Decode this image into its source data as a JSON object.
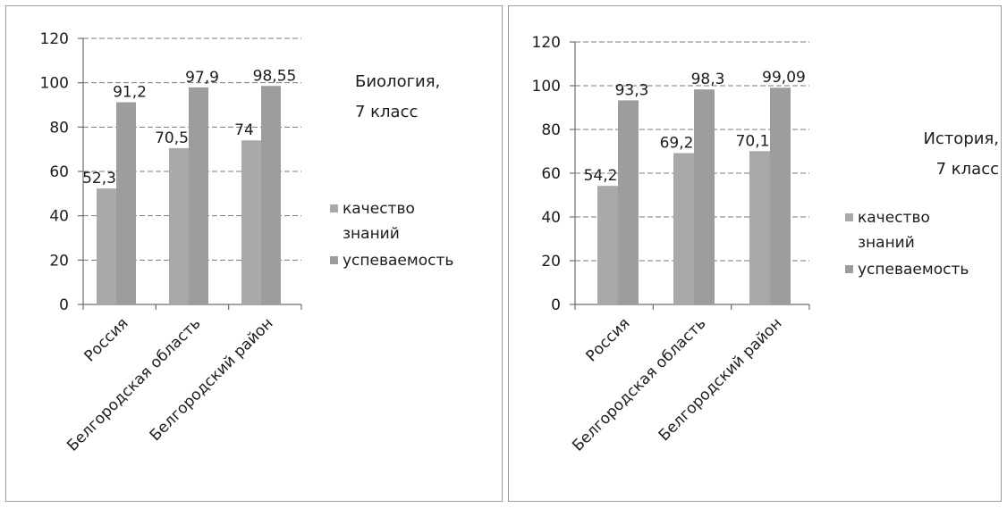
{
  "chart_data": [
    {
      "type": "bar",
      "title_lines": [
        "Биология,",
        "7 класс"
      ],
      "categories": [
        "Россия",
        "Белгородская область",
        "Белгородский район"
      ],
      "series": [
        {
          "name": "качество знаний",
          "legend_lines": [
            "качество",
            "знаний"
          ],
          "values": [
            52.3,
            70.5,
            74
          ],
          "labels": [
            "52,3",
            "70,5",
            "74"
          ]
        },
        {
          "name": "успеваемость",
          "legend_lines": [
            "успеваемость"
          ],
          "values": [
            91.2,
            97.9,
            98.55
          ],
          "labels": [
            "91,2",
            "97,9",
            "98,55"
          ]
        }
      ],
      "y_ticks": [
        "0",
        "20",
        "40",
        "60",
        "80",
        "100",
        "120"
      ],
      "ylim": [
        0,
        120
      ],
      "grid": true,
      "legend_position": "right",
      "colors": [
        "#a9a9a9",
        "#9d9d9d"
      ]
    },
    {
      "type": "bar",
      "title_lines": [
        "История,",
        "7 класс"
      ],
      "categories": [
        "Россия",
        "Белгородская область",
        "Белгородский район"
      ],
      "series": [
        {
          "name": "качество знаний",
          "legend_lines": [
            "качество",
            "знаний"
          ],
          "values": [
            54.2,
            69.2,
            70.1
          ],
          "labels": [
            "54,2",
            "69,2",
            "70,1"
          ]
        },
        {
          "name": "успеваемость",
          "legend_lines": [
            "успеваемость"
          ],
          "values": [
            93.3,
            98.3,
            99.09
          ],
          "labels": [
            "93,3",
            "98,3",
            "99,09"
          ]
        }
      ],
      "y_ticks": [
        "0",
        "20",
        "40",
        "60",
        "80",
        "100",
        "120"
      ],
      "ylim": [
        0,
        120
      ],
      "grid": true,
      "legend_position": "right",
      "colors": [
        "#a9a9a9",
        "#9d9d9d"
      ]
    }
  ]
}
